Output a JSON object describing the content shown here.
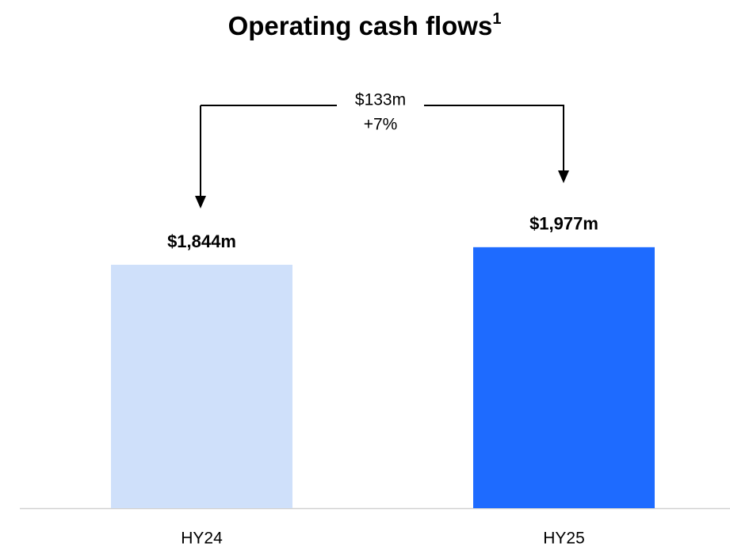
{
  "chart_data": {
    "type": "bar",
    "title": "Operating cash flows",
    "title_note": "1",
    "categories": [
      "HY24",
      "HY25"
    ],
    "values": [
      1844,
      1977
    ],
    "value_labels": [
      "$1,844m",
      "$1,977m"
    ],
    "colors": [
      "#cfe0fa",
      "#1e6bff"
    ],
    "annotation": {
      "change": "$133m",
      "change_pct": "+7%"
    }
  }
}
